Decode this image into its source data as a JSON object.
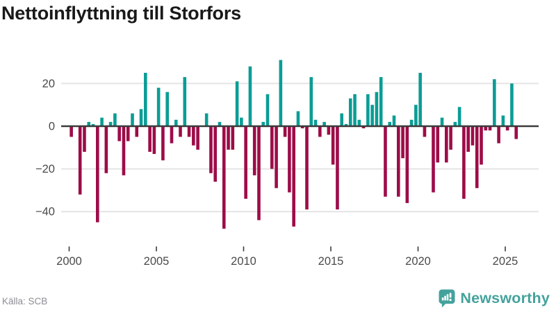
{
  "header": {
    "title": "Nettoinflyttning till Storfors"
  },
  "footer": {
    "source": "Källa: SCB",
    "brand": "Newsworthy"
  },
  "colors": {
    "positive": "#0a9d95",
    "negative": "#9d0c48",
    "zero_line": "#3a3a3a",
    "grid": "#e4e4e4",
    "tick_text": "#4a4a4a",
    "title_text": "#191919",
    "source_text": "#8c8c94",
    "brand": "#44a29d"
  },
  "chart_data": {
    "type": "bar",
    "title": "Nettoinflyttning till Storfors",
    "ylabel": "",
    "xlabel": "",
    "frequency": "quarterly",
    "x_start": "2000-Q1",
    "x_end": "2025-Q3",
    "grid": "horizontal",
    "legend": "none",
    "ylim": [
      -50,
      33
    ],
    "y_ticks": [
      20,
      0,
      -20,
      -40
    ],
    "y_tick_labels": [
      "20",
      "0",
      "−20",
      "−40"
    ],
    "x_tick_years": [
      2000,
      2005,
      2010,
      2015,
      2020,
      2025
    ],
    "x_tick_labels": [
      "2000",
      "2005",
      "2010",
      "2015",
      "2020",
      "2025"
    ],
    "series_name": "Nettoinflyttning",
    "values": [
      -5,
      0,
      -32,
      -12,
      2,
      1,
      -45,
      4,
      -22,
      2,
      6,
      -7,
      -23,
      -7,
      6,
      -5,
      8,
      25,
      -12,
      -13,
      18,
      -16,
      16,
      -8,
      3,
      -5,
      23,
      -5,
      -9,
      -11,
      0,
      6,
      -22,
      -26,
      2,
      -48,
      -11,
      -11,
      21,
      4,
      -34,
      28,
      -23,
      -44,
      2,
      15,
      -20,
      -29,
      31,
      -5,
      -31,
      -47,
      7,
      -1,
      -39,
      23,
      3,
      -5,
      2,
      -4,
      -18,
      -39,
      6,
      1,
      13,
      15,
      3,
      -1,
      15,
      10,
      16,
      23,
      -33,
      2,
      5,
      -33,
      -15,
      -36,
      3,
      10,
      25,
      -5,
      0,
      -31,
      -17,
      4,
      -17,
      -11,
      2,
      9,
      -34,
      -12,
      -9,
      -29,
      -18,
      -2,
      -2,
      22,
      -8,
      5,
      -2,
      20,
      -6
    ]
  }
}
